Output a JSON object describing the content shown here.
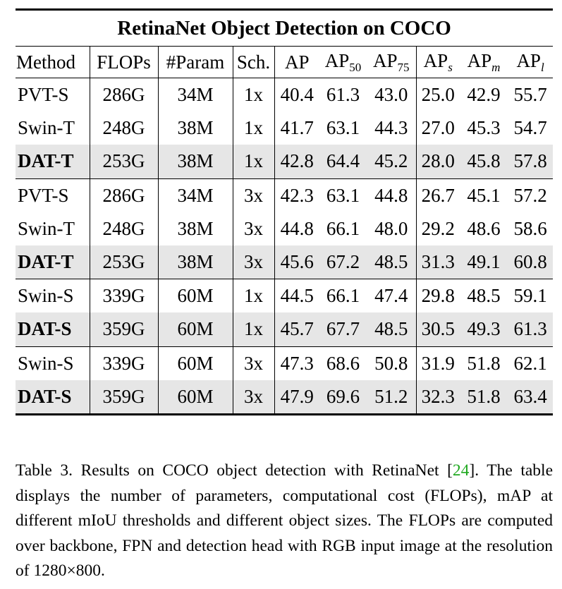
{
  "table": {
    "title": "RetinaNet Object Detection on COCO",
    "headers": {
      "method": "Method",
      "flops": "FLOPs",
      "params": "#Param",
      "sch": "Sch.",
      "ap": "AP",
      "ap50": {
        "base": "AP",
        "sub": "50"
      },
      "ap75": {
        "base": "AP",
        "sub": "75"
      },
      "aps": {
        "base": "AP",
        "sub": "s"
      },
      "apm": {
        "base": "AP",
        "sub": "m"
      },
      "apl": {
        "base": "AP",
        "sub": "l"
      }
    },
    "rows": [
      [
        "PVT-S",
        "286G",
        "34M",
        "1x",
        "40.4",
        "61.3",
        "43.0",
        "25.0",
        "42.9",
        "55.7"
      ],
      [
        "Swin-T",
        "248G",
        "38M",
        "1x",
        "41.7",
        "63.1",
        "44.3",
        "27.0",
        "45.3",
        "54.7"
      ],
      [
        "DAT-T",
        "253G",
        "38M",
        "1x",
        "42.8",
        "64.4",
        "45.2",
        "28.0",
        "45.8",
        "57.8"
      ],
      [
        "PVT-S",
        "286G",
        "34M",
        "3x",
        "42.3",
        "63.1",
        "44.8",
        "26.7",
        "45.1",
        "57.2"
      ],
      [
        "Swin-T",
        "248G",
        "38M",
        "3x",
        "44.8",
        "66.1",
        "48.0",
        "29.2",
        "48.6",
        "58.6"
      ],
      [
        "DAT-T",
        "253G",
        "38M",
        "3x",
        "45.6",
        "67.2",
        "48.5",
        "31.3",
        "49.1",
        "60.8"
      ],
      [
        "Swin-S",
        "339G",
        "60M",
        "1x",
        "44.5",
        "66.1",
        "47.4",
        "29.8",
        "48.5",
        "59.1"
      ],
      [
        "DAT-S",
        "359G",
        "60M",
        "1x",
        "45.7",
        "67.7",
        "48.5",
        "30.5",
        "49.3",
        "61.3"
      ],
      [
        "Swin-S",
        "339G",
        "60M",
        "3x",
        "47.3",
        "68.6",
        "50.8",
        "31.9",
        "51.8",
        "62.1"
      ],
      [
        "DAT-S",
        "359G",
        "60M",
        "3x",
        "47.9",
        "69.6",
        "51.2",
        "32.3",
        "51.8",
        "63.4"
      ]
    ],
    "highlight_rows": [
      2,
      5,
      7,
      9
    ],
    "group_start_rows": [
      3,
      6,
      8
    ],
    "highlight_color": "#e6e6e6"
  },
  "caption": {
    "label": "Table 3.",
    "text_before_ref": " Results on COCO object detection with RetinaNet [",
    "ref": "24",
    "text_after_ref": "]. The table displays the number of parameters, computational cost (FLOPs), mAP at different mIoU thresholds and different object sizes. The FLOPs are computed over backbone, FPN and detection head with RGB input image at the resolution of 1280×800.",
    "ref_color": "#1fa81f"
  }
}
